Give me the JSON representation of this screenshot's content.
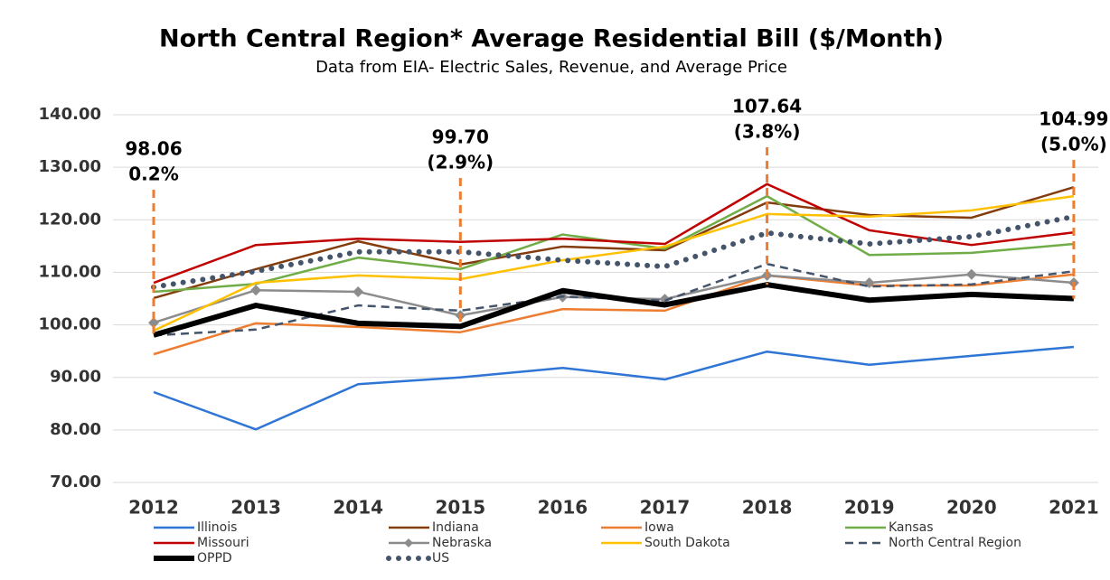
{
  "chart_data": {
    "type": "line",
    "title": "North Central Region* Average Residential Bill ($/Month)",
    "subtitle": "Data from EIA- Electric Sales, Revenue, and Average Price",
    "categories": [
      "2012",
      "2013",
      "2014",
      "2015",
      "2016",
      "2017",
      "2018",
      "2019",
      "2020",
      "2021"
    ],
    "ylim": [
      70,
      140
    ],
    "yticks": [
      {
        "value": 70,
        "label": "70.00"
      },
      {
        "value": 80,
        "label": "80.00"
      },
      {
        "value": 90,
        "label": "90.00"
      },
      {
        "value": 100,
        "label": "100.00"
      },
      {
        "value": 110,
        "label": "110.00"
      },
      {
        "value": 120,
        "label": "120.00"
      },
      {
        "value": 130,
        "label": "130.00"
      },
      {
        "value": 140,
        "label": "140.00"
      }
    ],
    "grid": true,
    "legend": "bottom",
    "series": [
      {
        "name": "Illinois",
        "color": "#2e75d6",
        "line_style": "solid",
        "line_width": 2.5,
        "values": [
          87.2,
          80.1,
          88.7,
          90.0,
          91.8,
          89.6,
          94.9,
          92.4,
          94.1,
          95.8
        ]
      },
      {
        "name": "Indiana",
        "color": "#843c0c",
        "line_style": "solid",
        "line_width": 2.5,
        "values": [
          105.1,
          110.6,
          115.9,
          111.5,
          114.9,
          114.2,
          123.3,
          120.9,
          120.4,
          126.2
        ]
      },
      {
        "name": "Iowa",
        "color": "#ed7d31",
        "line_style": "solid",
        "line_width": 2.5,
        "values": [
          94.4,
          100.3,
          99.6,
          98.6,
          103.0,
          102.7,
          109.4,
          107.5,
          107.5,
          109.6
        ]
      },
      {
        "name": "Kansas",
        "color": "#70ad47",
        "line_style": "solid",
        "line_width": 2.5,
        "values": [
          106.3,
          107.8,
          112.8,
          110.6,
          117.2,
          114.5,
          124.5,
          113.3,
          113.7,
          115.4
        ]
      },
      {
        "name": "Missouri",
        "color": "#c00000",
        "line_style": "solid",
        "line_width": 2.5,
        "values": [
          108.0,
          115.2,
          116.4,
          115.8,
          116.4,
          115.4,
          126.8,
          118.0,
          115.2,
          117.6
        ]
      },
      {
        "name": "Nebraska",
        "color": "#8c8c8c",
        "line_style": "solid",
        "line_width": 2.5,
        "marker": "diamond",
        "values": [
          100.4,
          106.6,
          106.3,
          101.8,
          105.3,
          104.9,
          109.4,
          108.0,
          109.6,
          108.0
        ]
      },
      {
        "name": "South Dakota",
        "color": "#ffc000",
        "line_style": "solid",
        "line_width": 2.5,
        "values": [
          98.9,
          108.0,
          109.4,
          108.7,
          112.3,
          114.9,
          121.1,
          120.6,
          121.8,
          124.5
        ]
      },
      {
        "name": "North Central Region",
        "color": "#44546a",
        "line_style": "dashed",
        "line_width": 2.5,
        "values": [
          98.0,
          99.1,
          103.7,
          102.7,
          105.4,
          104.6,
          111.6,
          107.3,
          107.7,
          110.2
        ]
      },
      {
        "name": "OPPD",
        "color": "#000000",
        "line_style": "solid",
        "line_width": 6,
        "values": [
          98.06,
          103.7,
          100.3,
          99.7,
          106.5,
          103.8,
          107.64,
          104.7,
          105.8,
          104.99
        ]
      },
      {
        "name": "US",
        "color": "#44546a",
        "line_style": "dotted",
        "line_width": 6,
        "values": [
          107.2,
          110.2,
          113.9,
          113.9,
          112.3,
          111.1,
          117.5,
          115.4,
          116.8,
          120.6
        ]
      }
    ],
    "annotations": [
      {
        "category": "2012",
        "series": "OPPD",
        "text": [
          "98.06",
          "0.2%"
        ],
        "color": "#ed7d31"
      },
      {
        "category": "2015",
        "series": "OPPD",
        "text": [
          "99.70",
          "(2.9%)"
        ],
        "color": "#ed7d31"
      },
      {
        "category": "2018",
        "series": "OPPD",
        "text": [
          "107.64",
          "(3.8%)"
        ],
        "color": "#ed7d31"
      },
      {
        "category": "2021",
        "series": "OPPD",
        "text": [
          "104.99",
          "(5.0%)"
        ],
        "color": "#ed7d31"
      }
    ]
  }
}
